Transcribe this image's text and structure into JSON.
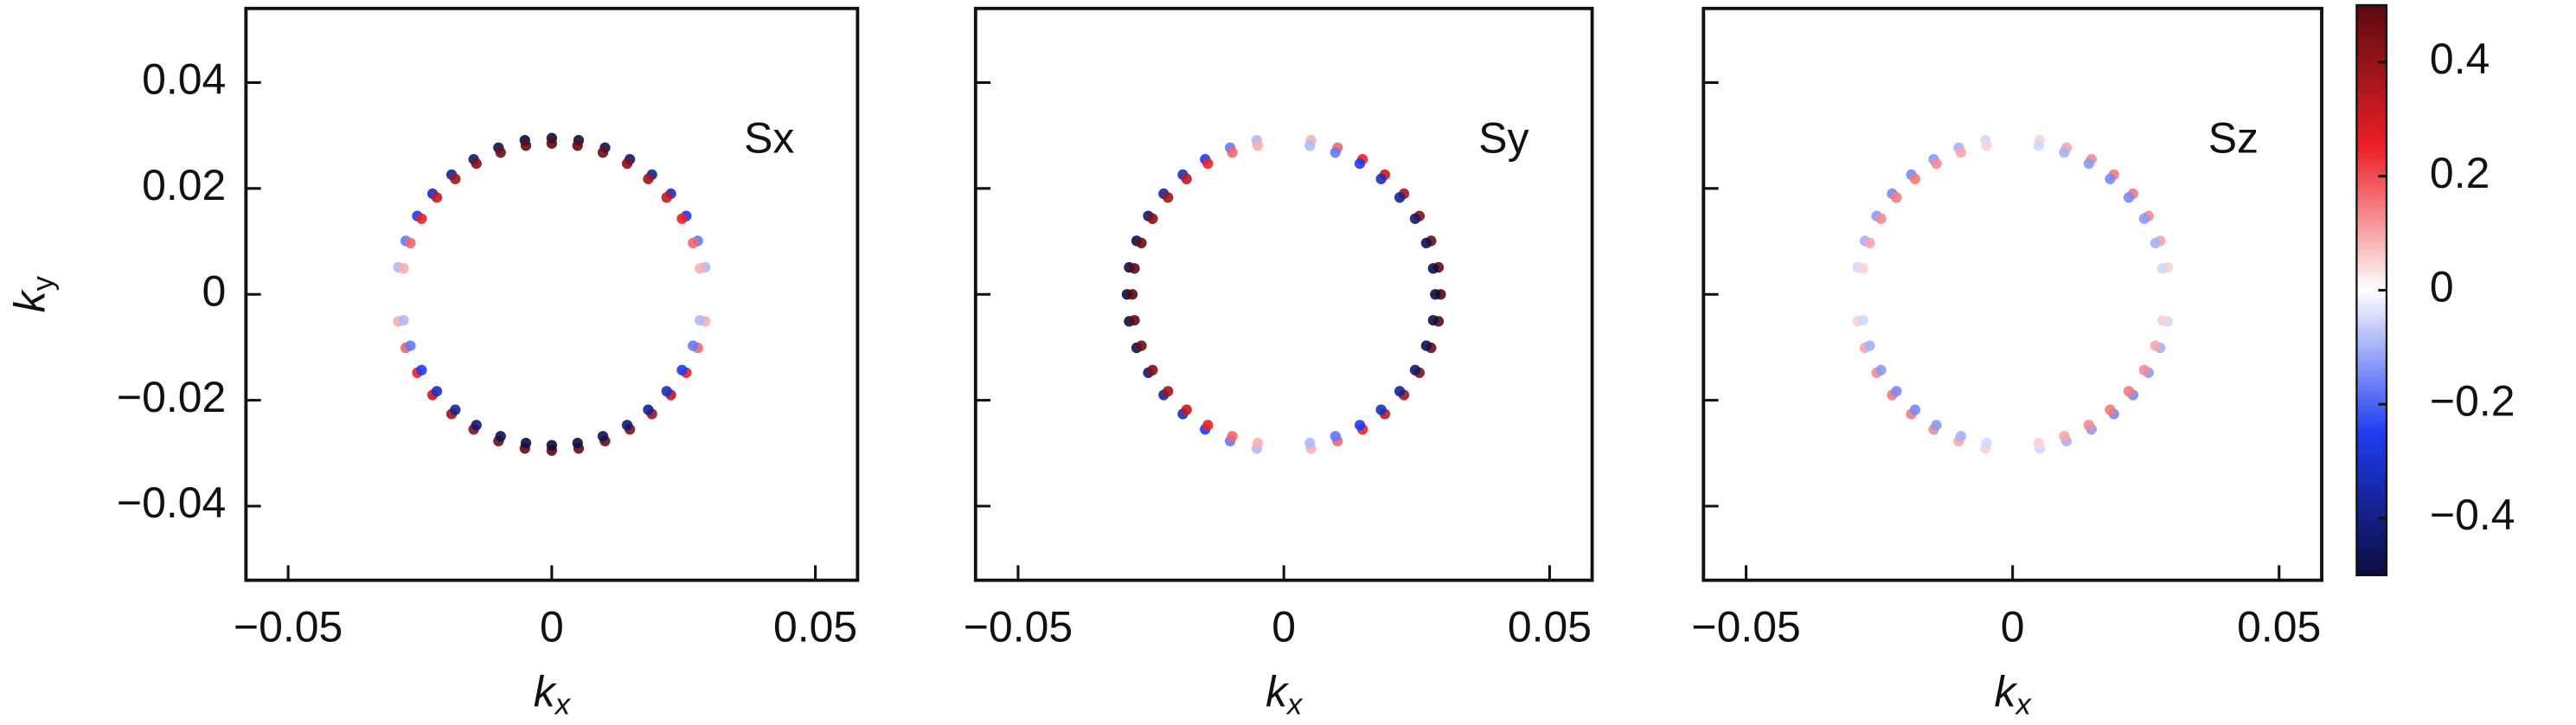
{
  "chart_data": [
    {
      "type": "scatter",
      "title": "Sx",
      "xlabel": "k",
      "xlabel_sub": "x",
      "ylabel": "k",
      "ylabel_sub": "y",
      "xlim": [
        -0.058,
        0.058
      ],
      "ylim": [
        -0.054,
        0.054
      ],
      "xticks": [
        {
          "value": -0.05,
          "label": "−0.05"
        },
        0,
        0.05
      ],
      "yticks": [
        {
          "value": -0.04,
          "label": "−0.04"
        },
        {
          "value": -0.02,
          "label": "−0.02"
        },
        0,
        0.02,
        0.04
      ],
      "ytick_labels": true,
      "series": [
        {
          "x": [
            0.0295,
            0.0291,
            0.0277,
            0.0255,
            0.0226,
            0.019,
            0.0148,
            0.0101,
            0.0051,
            0,
            -0.0051,
            -0.0101,
            -0.0148,
            -0.019,
            -0.0226,
            -0.0255,
            -0.0277,
            -0.0291,
            -0.0295,
            -0.0291,
            -0.0277,
            -0.0255,
            -0.0226,
            -0.019,
            -0.0148,
            -0.0101,
            -0.0051,
            0,
            0.0051,
            0.0101,
            0.0148,
            0.019,
            0.0226,
            0.0255,
            0.0277,
            0.0291
          ],
          "y": [
            0,
            0.0051,
            0.0101,
            0.0148,
            0.019,
            0.0226,
            0.0255,
            0.0277,
            0.0291,
            0.0295,
            0.0291,
            0.0277,
            0.0255,
            0.0226,
            0.019,
            0.0148,
            0.0101,
            0.0051,
            0,
            -0.0051,
            -0.0101,
            -0.0148,
            -0.019,
            -0.0226,
            -0.0255,
            -0.0277,
            -0.0291,
            -0.0295,
            -0.0291,
            -0.0277,
            -0.0255,
            -0.0226,
            -0.019,
            -0.0148,
            -0.0101,
            -0.0051
          ],
          "c": [
            0,
            -0.09,
            -0.17,
            -0.25,
            -0.32,
            -0.38,
            -0.43,
            -0.47,
            -0.49,
            -0.5,
            -0.49,
            -0.47,
            -0.43,
            -0.38,
            -0.32,
            -0.25,
            -0.17,
            -0.09,
            0,
            0.09,
            0.17,
            0.25,
            0.32,
            0.38,
            0.43,
            0.47,
            0.49,
            0.5,
            0.49,
            0.47,
            0.43,
            0.38,
            0.32,
            0.25,
            0.17,
            0.09
          ]
        },
        {
          "x": [
            0.0285,
            0.0281,
            0.0268,
            0.0247,
            0.0218,
            0.0183,
            0.0143,
            0.0097,
            0.0049,
            0,
            -0.0049,
            -0.0097,
            -0.0143,
            -0.0183,
            -0.0218,
            -0.0247,
            -0.0268,
            -0.0281,
            -0.0285,
            -0.0281,
            -0.0268,
            -0.0247,
            -0.0218,
            -0.0183,
            -0.0143,
            -0.0097,
            -0.0049,
            0,
            0.0049,
            0.0097,
            0.0143,
            0.0183,
            0.0218,
            0.0247,
            0.0268,
            0.0281
          ],
          "y": [
            0,
            0.0049,
            0.0097,
            0.0143,
            0.0183,
            0.0218,
            0.0247,
            0.0268,
            0.0281,
            0.0285,
            0.0281,
            0.0268,
            0.0247,
            0.0218,
            0.0183,
            0.0143,
            0.0097,
            0.0049,
            0,
            -0.0049,
            -0.0097,
            -0.0143,
            -0.0183,
            -0.0218,
            -0.0247,
            -0.0268,
            -0.0281,
            -0.0285,
            -0.0281,
            -0.0268,
            -0.0247,
            -0.0218,
            -0.0183,
            -0.0143,
            -0.0097,
            -0.0049
          ],
          "c": [
            0,
            0.09,
            0.17,
            0.25,
            0.32,
            0.38,
            0.43,
            0.47,
            0.49,
            0.5,
            0.49,
            0.47,
            0.43,
            0.38,
            0.32,
            0.25,
            0.17,
            0.09,
            0,
            -0.09,
            -0.17,
            -0.25,
            -0.32,
            -0.38,
            -0.43,
            -0.47,
            -0.49,
            -0.5,
            -0.49,
            -0.47,
            -0.43,
            -0.38,
            -0.32,
            -0.25,
            -0.17,
            -0.09
          ]
        }
      ]
    },
    {
      "type": "scatter",
      "title": "Sy",
      "xlabel": "k",
      "xlabel_sub": "x",
      "xlim": [
        -0.058,
        0.058
      ],
      "ylim": [
        -0.054,
        0.054
      ],
      "xticks": [
        {
          "value": -0.05,
          "label": "−0.05"
        },
        0,
        0.05
      ],
      "yticks": [
        -0.04,
        -0.02,
        0,
        0.02,
        0.04
      ],
      "ytick_labels": false,
      "series": [
        {
          "x": [
            0.0295,
            0.0291,
            0.0277,
            0.0255,
            0.0226,
            0.019,
            0.0148,
            0.0101,
            0.0051,
            0,
            -0.0051,
            -0.0101,
            -0.0148,
            -0.019,
            -0.0226,
            -0.0255,
            -0.0277,
            -0.0291,
            -0.0295,
            -0.0291,
            -0.0277,
            -0.0255,
            -0.0226,
            -0.019,
            -0.0148,
            -0.0101,
            -0.0051,
            0,
            0.0051,
            0.0101,
            0.0148,
            0.019,
            0.0226,
            0.0255,
            0.0277,
            0.0291
          ],
          "y": [
            0,
            0.0051,
            0.0101,
            0.0148,
            0.019,
            0.0226,
            0.0255,
            0.0277,
            0.0291,
            0.0295,
            0.0291,
            0.0277,
            0.0255,
            0.0226,
            0.019,
            0.0148,
            0.0101,
            0.0051,
            0,
            -0.0051,
            -0.0101,
            -0.0148,
            -0.019,
            -0.0226,
            -0.0255,
            -0.0277,
            -0.0291,
            -0.0295,
            -0.0291,
            -0.0277,
            -0.0255,
            -0.0226,
            -0.019,
            -0.0148,
            -0.0101,
            -0.0051
          ],
          "c": [
            0.5,
            0.49,
            0.47,
            0.43,
            0.38,
            0.32,
            0.25,
            0.17,
            0.09,
            0,
            -0.09,
            -0.17,
            -0.25,
            -0.32,
            -0.38,
            -0.43,
            -0.47,
            -0.49,
            -0.5,
            -0.49,
            -0.47,
            -0.43,
            -0.38,
            -0.32,
            -0.25,
            -0.17,
            -0.09,
            0,
            0.09,
            0.17,
            0.25,
            0.32,
            0.38,
            0.43,
            0.47,
            0.49
          ]
        },
        {
          "x": [
            0.0285,
            0.0281,
            0.0268,
            0.0247,
            0.0218,
            0.0183,
            0.0143,
            0.0097,
            0.0049,
            0,
            -0.0049,
            -0.0097,
            -0.0143,
            -0.0183,
            -0.0218,
            -0.0247,
            -0.0268,
            -0.0281,
            -0.0285,
            -0.0281,
            -0.0268,
            -0.0247,
            -0.0218,
            -0.0183,
            -0.0143,
            -0.0097,
            -0.0049,
            0,
            0.0049,
            0.0097,
            0.0143,
            0.0183,
            0.0218,
            0.0247,
            0.0268,
            0.0281
          ],
          "y": [
            0,
            0.0049,
            0.0097,
            0.0143,
            0.0183,
            0.0218,
            0.0247,
            0.0268,
            0.0281,
            0.0285,
            0.0281,
            0.0268,
            0.0247,
            0.0218,
            0.0183,
            0.0143,
            0.0097,
            0.0049,
            0,
            -0.0049,
            -0.0097,
            -0.0143,
            -0.0183,
            -0.0218,
            -0.0247,
            -0.0268,
            -0.0281,
            -0.0285,
            -0.0281,
            -0.0268,
            -0.0247,
            -0.0218,
            -0.0183,
            -0.0143,
            -0.0097,
            -0.0049
          ],
          "c": [
            -0.5,
            -0.49,
            -0.47,
            -0.43,
            -0.38,
            -0.32,
            -0.25,
            -0.17,
            -0.09,
            0,
            0.09,
            0.17,
            0.25,
            0.32,
            0.38,
            0.43,
            0.47,
            0.49,
            0.5,
            0.49,
            0.47,
            0.43,
            0.38,
            0.32,
            0.25,
            0.17,
            0.09,
            0,
            -0.09,
            -0.17,
            -0.25,
            -0.32,
            -0.38,
            -0.43,
            -0.47,
            -0.49
          ]
        }
      ]
    },
    {
      "type": "scatter",
      "title": "Sz",
      "xlabel": "k",
      "xlabel_sub": "x",
      "xlim": [
        -0.058,
        0.058
      ],
      "ylim": [
        -0.054,
        0.054
      ],
      "xticks": [
        {
          "value": -0.05,
          "label": "−0.05"
        },
        0,
        0.05
      ],
      "yticks": [
        -0.04,
        -0.02,
        0,
        0.02,
        0.04
      ],
      "ytick_labels": false,
      "series": [
        {
          "x": [
            0.0295,
            0.0291,
            0.0277,
            0.0255,
            0.0226,
            0.019,
            0.0148,
            0.0101,
            0.0051,
            0,
            -0.0051,
            -0.0101,
            -0.0148,
            -0.019,
            -0.0226,
            -0.0255,
            -0.0277,
            -0.0291,
            -0.0295,
            -0.0291,
            -0.0277,
            -0.0255,
            -0.0226,
            -0.019,
            -0.0148,
            -0.0101,
            -0.0051,
            0,
            0.0051,
            0.0101,
            0.0148,
            0.019,
            0.0226,
            0.0255,
            0.0277,
            0.0291
          ],
          "y": [
            0,
            0.0051,
            0.0101,
            0.0148,
            0.019,
            0.0226,
            0.0255,
            0.0277,
            0.0291,
            0.0295,
            0.0291,
            0.0277,
            0.0255,
            0.0226,
            0.019,
            0.0148,
            0.0101,
            0.0051,
            0,
            -0.0051,
            -0.0101,
            -0.0148,
            -0.019,
            -0.0226,
            -0.0255,
            -0.0277,
            -0.0291,
            -0.0295,
            -0.0291,
            -0.0277,
            -0.0255,
            -0.0226,
            -0.019,
            -0.0148,
            -0.0101,
            -0.0051
          ],
          "c": [
            0,
            0.05,
            0.1,
            0.13,
            0.15,
            0.15,
            0.13,
            0.1,
            0.05,
            0,
            -0.05,
            -0.1,
            -0.13,
            -0.15,
            -0.15,
            -0.13,
            -0.1,
            -0.05,
            0,
            0.05,
            0.1,
            0.13,
            0.15,
            0.15,
            0.13,
            0.1,
            0.05,
            0,
            -0.05,
            -0.1,
            -0.13,
            -0.15,
            -0.15,
            -0.13,
            -0.1,
            -0.05
          ]
        },
        {
          "x": [
            0.0285,
            0.0281,
            0.0268,
            0.0247,
            0.0218,
            0.0183,
            0.0143,
            0.0097,
            0.0049,
            0,
            -0.0049,
            -0.0097,
            -0.0143,
            -0.0183,
            -0.0218,
            -0.0247,
            -0.0268,
            -0.0281,
            -0.0285,
            -0.0281,
            -0.0268,
            -0.0247,
            -0.0218,
            -0.0183,
            -0.0143,
            -0.0097,
            -0.0049,
            0,
            0.0049,
            0.0097,
            0.0143,
            0.0183,
            0.0218,
            0.0247,
            0.0268,
            0.0281
          ],
          "y": [
            0,
            0.0049,
            0.0097,
            0.0143,
            0.0183,
            0.0218,
            0.0247,
            0.0268,
            0.0281,
            0.0285,
            0.0281,
            0.0268,
            0.0247,
            0.0218,
            0.0183,
            0.0143,
            0.0097,
            0.0049,
            0,
            -0.0049,
            -0.0097,
            -0.0143,
            -0.0183,
            -0.0218,
            -0.0247,
            -0.0268,
            -0.0281,
            -0.0285,
            -0.0281,
            -0.0268,
            -0.0247,
            -0.0218,
            -0.0183,
            -0.0143,
            -0.0097,
            -0.0049
          ],
          "c": [
            0,
            -0.05,
            -0.1,
            -0.13,
            -0.15,
            -0.15,
            -0.13,
            -0.1,
            -0.05,
            0,
            0.05,
            0.1,
            0.13,
            0.15,
            0.15,
            0.13,
            0.1,
            0.05,
            0,
            -0.05,
            -0.1,
            -0.13,
            -0.15,
            -0.15,
            -0.13,
            -0.1,
            -0.05,
            0,
            0.05,
            0.1,
            0.13,
            0.15,
            0.15,
            0.13,
            0.1,
            0.05
          ]
        }
      ]
    }
  ],
  "colorbar": {
    "clim": [
      -0.5,
      0.5
    ],
    "ticks": [
      {
        "value": -0.4,
        "label": "−0.4"
      },
      {
        "value": -0.2,
        "label": "−0.2"
      },
      0,
      0.2,
      0.4
    ],
    "colormap": [
      "#0c0c3c",
      "#1e3cf0",
      "#ffffff",
      "#ec2026",
      "#5a0a10"
    ]
  }
}
